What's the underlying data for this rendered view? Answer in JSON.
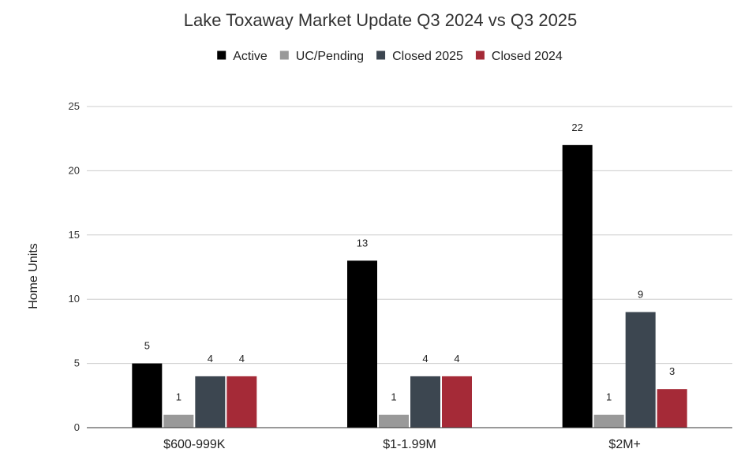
{
  "chart_data": {
    "type": "bar",
    "title": "Lake Toxaway Market Update Q3 2024 vs Q3 2025",
    "xlabel": "",
    "ylabel": "Home Units",
    "ylim": [
      0,
      25
    ],
    "yticks": [
      0,
      5,
      10,
      15,
      20,
      25
    ],
    "grid": true,
    "legend_position": "top",
    "categories": [
      "$600-999K",
      "$1-1.99M",
      "$2M+"
    ],
    "series": [
      {
        "name": "Active",
        "color": "#000000",
        "values": [
          5,
          13,
          22
        ]
      },
      {
        "name": "UC/Pending",
        "color": "#999999",
        "values": [
          1,
          1,
          1
        ]
      },
      {
        "name": "Closed 2025",
        "color": "#3c4650",
        "values": [
          4,
          4,
          9
        ]
      },
      {
        "name": "Closed 2024",
        "color": "#a52a37",
        "values": [
          4,
          4,
          3
        ]
      }
    ]
  }
}
